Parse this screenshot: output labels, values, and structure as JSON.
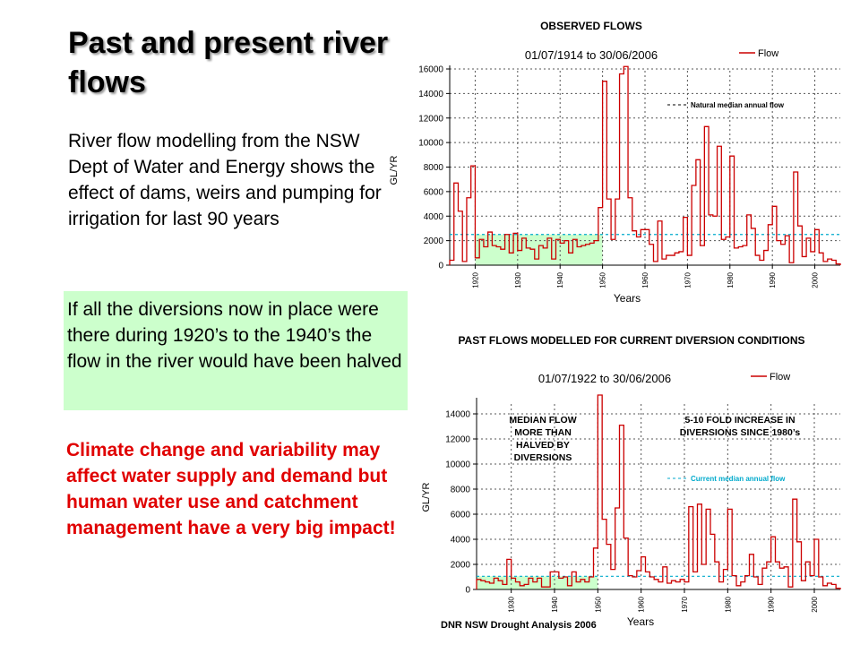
{
  "slide": {
    "title": "Past and present river flows",
    "intro": "River flow modelling from the NSW Dept of Water and Energy shows the effect of dams, weirs and pumping for irrigation for last 90 years",
    "green_box": "If all the diversions now in place were there during 1920’s to the 1940’s the flow in the river would have been halved",
    "red_text": "Climate change and variability may affect water supply and demand but human water use and catchment management have a very big impact!",
    "credit": "DNR NSW Drought Analysis 2006"
  },
  "chart_data": [
    {
      "type": "line",
      "heading": "OBSERVED FLOWS",
      "title": "01/07/1914  to  30/06/2006",
      "xlabel": "Years",
      "ylabel": "GL/YR",
      "xlim": [
        1914,
        2006
      ],
      "ylim": [
        0,
        16000
      ],
      "x_ticks": [
        1920,
        1930,
        1940,
        1950,
        1960,
        1970,
        1980,
        1990,
        2000
      ],
      "y_ticks": [
        0,
        2000,
        4000,
        6000,
        8000,
        10000,
        12000,
        14000,
        16000
      ],
      "grid": true,
      "legend": "top-right",
      "colors": {
        "flow": "#cc0000",
        "median": "#00aacc",
        "shade": "#ccffcc"
      },
      "shaded_range": [
        1920,
        1950
      ],
      "series": [
        {
          "name": "Flow",
          "x": [
            1914,
            1915,
            1916,
            1917,
            1918,
            1919,
            1920,
            1921,
            1922,
            1923,
            1924,
            1925,
            1926,
            1927,
            1928,
            1929,
            1930,
            1931,
            1932,
            1933,
            1934,
            1935,
            1936,
            1937,
            1938,
            1939,
            1940,
            1941,
            1942,
            1943,
            1944,
            1945,
            1946,
            1947,
            1948,
            1949,
            1950,
            1951,
            1952,
            1953,
            1954,
            1955,
            1956,
            1957,
            1958,
            1959,
            1960,
            1961,
            1962,
            1963,
            1964,
            1965,
            1966,
            1967,
            1968,
            1969,
            1970,
            1971,
            1972,
            1973,
            1974,
            1975,
            1976,
            1977,
            1978,
            1979,
            1980,
            1981,
            1982,
            1983,
            1984,
            1985,
            1986,
            1987,
            1988,
            1989,
            1990,
            1991,
            1992,
            1993,
            1994,
            1995,
            1996,
            1997,
            1998,
            1999,
            2000,
            2001,
            2002,
            2003,
            2004,
            2005
          ],
          "y": [
            400,
            6700,
            4400,
            300,
            5500,
            8100,
            600,
            2100,
            1500,
            2700,
            1600,
            1500,
            1300,
            2500,
            1000,
            2600,
            1200,
            2200,
            1400,
            1300,
            500,
            1600,
            1400,
            2200,
            500,
            2100,
            1800,
            2000,
            1000,
            2100,
            1500,
            1600,
            1700,
            1800,
            2000,
            4700,
            15000,
            5400,
            2100,
            5400,
            15600,
            16200,
            5500,
            2800,
            2300,
            2900,
            2900,
            1700,
            300,
            3600,
            500,
            800,
            800,
            1000,
            1100,
            3900,
            800,
            6500,
            8600,
            1600,
            11300,
            4100,
            4000,
            9700,
            2100,
            2300,
            8900,
            1400,
            1500,
            1600,
            4100,
            3000,
            800,
            400,
            1200,
            3300,
            4800,
            2000,
            1700,
            2400,
            200,
            7600,
            3200,
            700,
            2200,
            1100,
            2900,
            1000,
            300,
            500,
            400,
            100
          ]
        },
        {
          "name": "Natural median annual flow",
          "x": [
            1914,
            2006
          ],
          "y": [
            2500,
            2500
          ]
        }
      ]
    },
    {
      "type": "line",
      "heading": "PAST FLOWS MODELLED FOR CURRENT DIVERSION CONDITIONS",
      "title": "01/07/1922  to  30/06/2006",
      "xlabel": "Years",
      "ylabel": "GL/YR",
      "xlim": [
        1922,
        2006
      ],
      "ylim": [
        0,
        15000
      ],
      "x_ticks": [
        1930,
        1940,
        1950,
        1960,
        1970,
        1980,
        1990,
        2000
      ],
      "y_ticks": [
        0,
        2000,
        4000,
        6000,
        8000,
        10000,
        12000,
        14000
      ],
      "grid": true,
      "legend": "top-right",
      "colors": {
        "flow": "#cc0000",
        "median": "#00aacc",
        "shade": "#ccffcc"
      },
      "shaded_range": [
        1922,
        1950
      ],
      "annotations": [
        "MEDIAN FLOW MORE THAN HALVED BY DIVERSIONS",
        "5-10 FOLD INCREASE IN DIVERSIONS SINCE 1980’s"
      ],
      "series": [
        {
          "name": "Flow",
          "x": [
            1922,
            1923,
            1924,
            1925,
            1926,
            1927,
            1928,
            1929,
            1930,
            1931,
            1932,
            1933,
            1934,
            1935,
            1936,
            1937,
            1938,
            1939,
            1940,
            1941,
            1942,
            1943,
            1944,
            1945,
            1946,
            1947,
            1948,
            1949,
            1950,
            1951,
            1952,
            1953,
            1954,
            1955,
            1956,
            1957,
            1958,
            1959,
            1960,
            1961,
            1962,
            1963,
            1964,
            1965,
            1966,
            1967,
            1968,
            1969,
            1970,
            1971,
            1972,
            1973,
            1974,
            1975,
            1976,
            1977,
            1978,
            1979,
            1980,
            1981,
            1982,
            1983,
            1984,
            1985,
            1986,
            1987,
            1988,
            1989,
            1990,
            1991,
            1992,
            1993,
            1994,
            1995,
            1996,
            1997,
            1998,
            1999,
            2000,
            2001,
            2002,
            2003,
            2004,
            2005
          ],
          "y": [
            800,
            700,
            600,
            500,
            900,
            700,
            400,
            2400,
            900,
            600,
            300,
            400,
            900,
            600,
            900,
            200,
            200,
            1400,
            1400,
            900,
            1000,
            300,
            1400,
            600,
            800,
            600,
            1000,
            3300,
            15500,
            5600,
            3600,
            1600,
            6500,
            13100,
            4100,
            1100,
            1000,
            1500,
            2600,
            1400,
            1000,
            800,
            600,
            1800,
            500,
            700,
            600,
            800,
            600,
            6600,
            1400,
            6800,
            2000,
            6400,
            4400,
            2200,
            600,
            1600,
            6400,
            1100,
            300,
            600,
            1100,
            2800,
            1000,
            400,
            1700,
            2200,
            4200,
            2200,
            1700,
            1800,
            200,
            7200,
            3800,
            700,
            2200,
            1100,
            4000,
            1000,
            300,
            500,
            400,
            100
          ]
        },
        {
          "name": "Current median annual flow",
          "x": [
            1922,
            2006
          ],
          "y": [
            1050,
            1050
          ]
        }
      ]
    }
  ]
}
